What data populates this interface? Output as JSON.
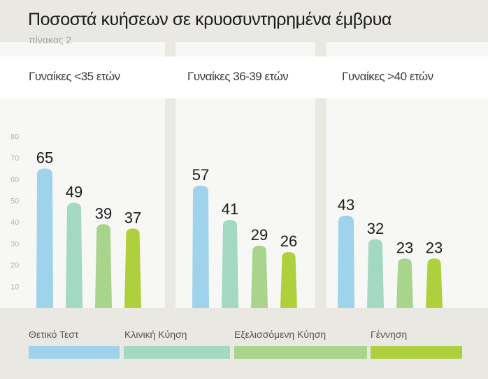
{
  "title": "Ποσοστά κυήσεων σε κρυοσυντηρημένα έμβρυα",
  "subtitle": "πίνακας 2",
  "colors": {
    "background": "#e9e8e3",
    "panel": "#f7f7f5",
    "band": "#ffffff",
    "series": [
      "#9fd3ec",
      "#a3d8c3",
      "#a9d48c",
      "#afd03d"
    ]
  },
  "chart_data": {
    "type": "bar",
    "title": "Ποσοστά κυήσεων σε κρυοσυντηρημένα έμβρυα",
    "subtitle": "πίνακας 2",
    "categories": [
      "Γυναίκες <35 ετών",
      "Γυναίκες 36-39 ετών",
      "Γυναίκες >40 ετών"
    ],
    "series": [
      {
        "name": "Θετικό Τεστ",
        "values": [
          65,
          57,
          43
        ]
      },
      {
        "name": "Κλινική Κύηση",
        "values": [
          49,
          41,
          32
        ]
      },
      {
        "name": "Εξελισσόμενη Κύηση",
        "values": [
          39,
          29,
          23
        ]
      },
      {
        "name": "Γέννηση",
        "values": [
          37,
          26,
          23
        ]
      }
    ],
    "ylim": [
      0,
      80
    ],
    "yticks": [
      10,
      20,
      30,
      40,
      50,
      60,
      70,
      80
    ],
    "xlabel": "",
    "ylabel": "",
    "legend": "bottom",
    "data_labels": true,
    "grid": false
  }
}
